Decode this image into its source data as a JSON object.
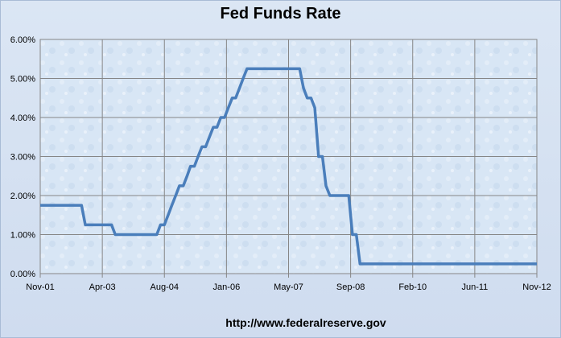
{
  "chart_data": {
    "type": "line",
    "title": "Fed Funds Rate",
    "xlabel": "",
    "ylabel": "",
    "ylim": [
      0,
      6
    ],
    "grid": true,
    "legend": "none",
    "y_ticks": [
      "0.00%",
      "1.00%",
      "2.00%",
      "3.00%",
      "4.00%",
      "5.00%",
      "6.00%"
    ],
    "x_ticks": [
      "Nov-01",
      "Apr-03",
      "Aug-04",
      "Jan-06",
      "May-07",
      "Sep-08",
      "Feb-10",
      "Jun-11",
      "Nov-12"
    ],
    "colors": {
      "line": "#4a7ebb",
      "grid": "#868686",
      "plot_bg": "#d8e6f5"
    },
    "series": [
      {
        "values_x": [
          "2001-11-01",
          "2002-01-01",
          "2002-04-01",
          "2002-07-01",
          "2002-10-01",
          "2002-11-01",
          "2002-12-01",
          "2003-01-01",
          "2003-04-01",
          "2003-06-01",
          "2003-07-01",
          "2004-01-01",
          "2004-06-01",
          "2004-07-01",
          "2004-08-01",
          "2004-09-01",
          "2004-10-01",
          "2004-11-01",
          "2004-12-01",
          "2005-01-01",
          "2005-02-01",
          "2005-03-01",
          "2005-04-01",
          "2005-05-01",
          "2005-06-01",
          "2005-07-01",
          "2005-08-01",
          "2005-09-01",
          "2005-10-01",
          "2005-11-01",
          "2005-12-01",
          "2006-01-01",
          "2006-02-01",
          "2006-03-01",
          "2006-04-01",
          "2006-05-01",
          "2006-06-01",
          "2006-07-01",
          "2007-01-01",
          "2007-06-01",
          "2007-08-01",
          "2007-09-01",
          "2007-10-01",
          "2007-11-01",
          "2007-12-01",
          "2008-01-01",
          "2008-02-01",
          "2008-03-01",
          "2008-04-01",
          "2008-05-01",
          "2008-07-01",
          "2008-09-01",
          "2008-10-01",
          "2008-11-01",
          "2008-12-01",
          "2009-01-01",
          "2012-11-01"
        ],
        "values_y": [
          1.75,
          1.75,
          1.75,
          1.75,
          1.75,
          1.25,
          1.25,
          1.25,
          1.25,
          1.25,
          1.0,
          1.0,
          1.0,
          1.25,
          1.25,
          1.5,
          1.75,
          2.0,
          2.25,
          2.25,
          2.5,
          2.75,
          2.75,
          3.0,
          3.25,
          3.25,
          3.5,
          3.75,
          3.75,
          4.0,
          4.0,
          4.25,
          4.5,
          4.5,
          4.75,
          5.0,
          5.25,
          5.25,
          5.25,
          5.25,
          5.25,
          4.75,
          4.5,
          4.5,
          4.25,
          3.0,
          3.0,
          2.25,
          2.0,
          2.0,
          2.0,
          2.0,
          1.0,
          1.0,
          0.25,
          0.25,
          0.25
        ]
      }
    ]
  },
  "source": "http://www.federalreserve.gov"
}
